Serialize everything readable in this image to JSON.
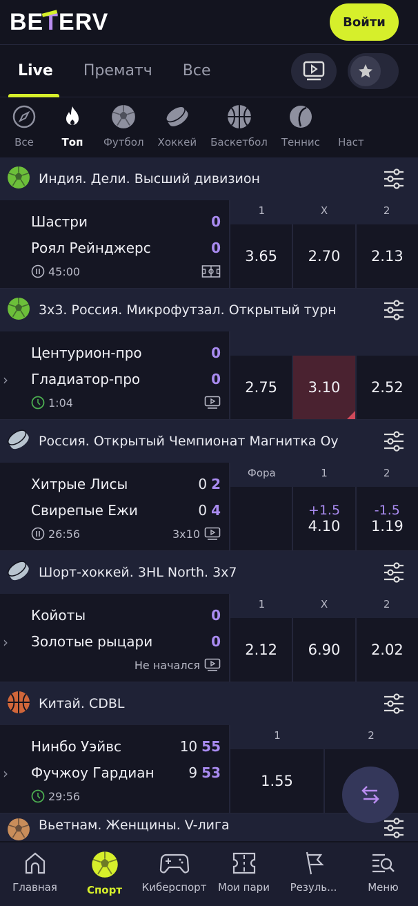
{
  "header": {
    "logo": "BETERV",
    "login": "Войти"
  },
  "tabs": [
    {
      "label": "Live",
      "active": true
    },
    {
      "label": "Прематч"
    },
    {
      "label": "Все"
    }
  ],
  "sports": [
    {
      "label": "Все",
      "icon": "compass-icon"
    },
    {
      "label": "Топ",
      "icon": "fire-icon",
      "active": true
    },
    {
      "label": "Футбол",
      "icon": "soccer-ball-icon"
    },
    {
      "label": "Хоккей",
      "icon": "hockey-puck-icon"
    },
    {
      "label": "Баскетбол",
      "icon": "basketball-icon"
    },
    {
      "label": "Теннис",
      "icon": "tennis-ball-icon"
    },
    {
      "label": "Наст",
      "icon": "table-tennis-icon"
    }
  ],
  "leagues": [
    {
      "name": "Индия. Дели. Высший дивизион",
      "sport": "soccer",
      "match": {
        "home": "Шастри",
        "away": "Роял Рейнджерс",
        "home_score": "0",
        "away_score": "0",
        "time": "45:00",
        "status": "paused",
        "extra": "",
        "odds_headers": [
          "1",
          "X",
          "2"
        ],
        "odds": [
          "3.65",
          "2.70",
          "2.13"
        ]
      }
    },
    {
      "name": "3x3. Россия. Микрофутзал. Открытый турн",
      "sport": "soccer",
      "match": {
        "home": "Центурион-про",
        "away": "Гладиатор-про",
        "home_score": "0",
        "away_score": "0",
        "time": "1:04",
        "status": "live",
        "extra": "",
        "odds_headers": [
          "",
          "",
          ""
        ],
        "odds": [
          "2.75",
          "3.10",
          "2.52"
        ],
        "highlight": 1
      }
    },
    {
      "name": "Россия. Открытый Чемпионат Магнитка Оу",
      "sport": "hockey",
      "match": {
        "home": "Хитрые Лисы",
        "away": "Свирепые Ежи",
        "home_games": "0",
        "away_games": "0",
        "home_score": "2",
        "away_score": "4",
        "time": "26:56",
        "status": "paused",
        "extra": "3x10",
        "odds_headers": [
          "Фора",
          "1",
          "2"
        ],
        "handicaps": [
          "",
          "+1.5",
          "-1.5"
        ],
        "odds": [
          "",
          "4.10",
          "1.19"
        ]
      }
    },
    {
      "name": "Шорт-хоккей. 3HL North. 3x7",
      "sport": "hockey",
      "match": {
        "home": "Койоты",
        "away": "Золотые рыцари",
        "home_score": "0",
        "away_score": "0",
        "time": "",
        "status": "",
        "extra": "Не начался",
        "odds_headers": [
          "1",
          "X",
          "2"
        ],
        "odds": [
          "2.12",
          "6.90",
          "2.02"
        ]
      }
    },
    {
      "name": "Китай. CDBL",
      "sport": "basketball",
      "match": {
        "home": "Нинбо Уэйвс",
        "away": "Фучжоу Гардиан",
        "home_games": "10",
        "away_games": "9",
        "home_score": "55",
        "away_score": "53",
        "time": "29:56",
        "status": "live",
        "extra": "",
        "odds_headers": [
          "1",
          "2"
        ],
        "odds": [
          "1.55",
          ""
        ]
      }
    },
    {
      "name": "Вьетнам. Женщины. V-лига",
      "sport": "volleyball"
    }
  ],
  "bottom_nav": [
    {
      "label": "Главная",
      "icon": "home-icon"
    },
    {
      "label": "Спорт",
      "icon": "soccer-ball-icon",
      "active": true
    },
    {
      "label": "Киберспорт",
      "icon": "gamepad-icon"
    },
    {
      "label": "Мои пари",
      "icon": "ticket-icon"
    },
    {
      "label": "Резуль...",
      "icon": "flag-icon"
    },
    {
      "label": "Меню",
      "icon": "menu-search-icon"
    }
  ],
  "colors": {
    "accent": "#d6ef2b",
    "score": "#a98bf0",
    "background": "#13141f"
  }
}
